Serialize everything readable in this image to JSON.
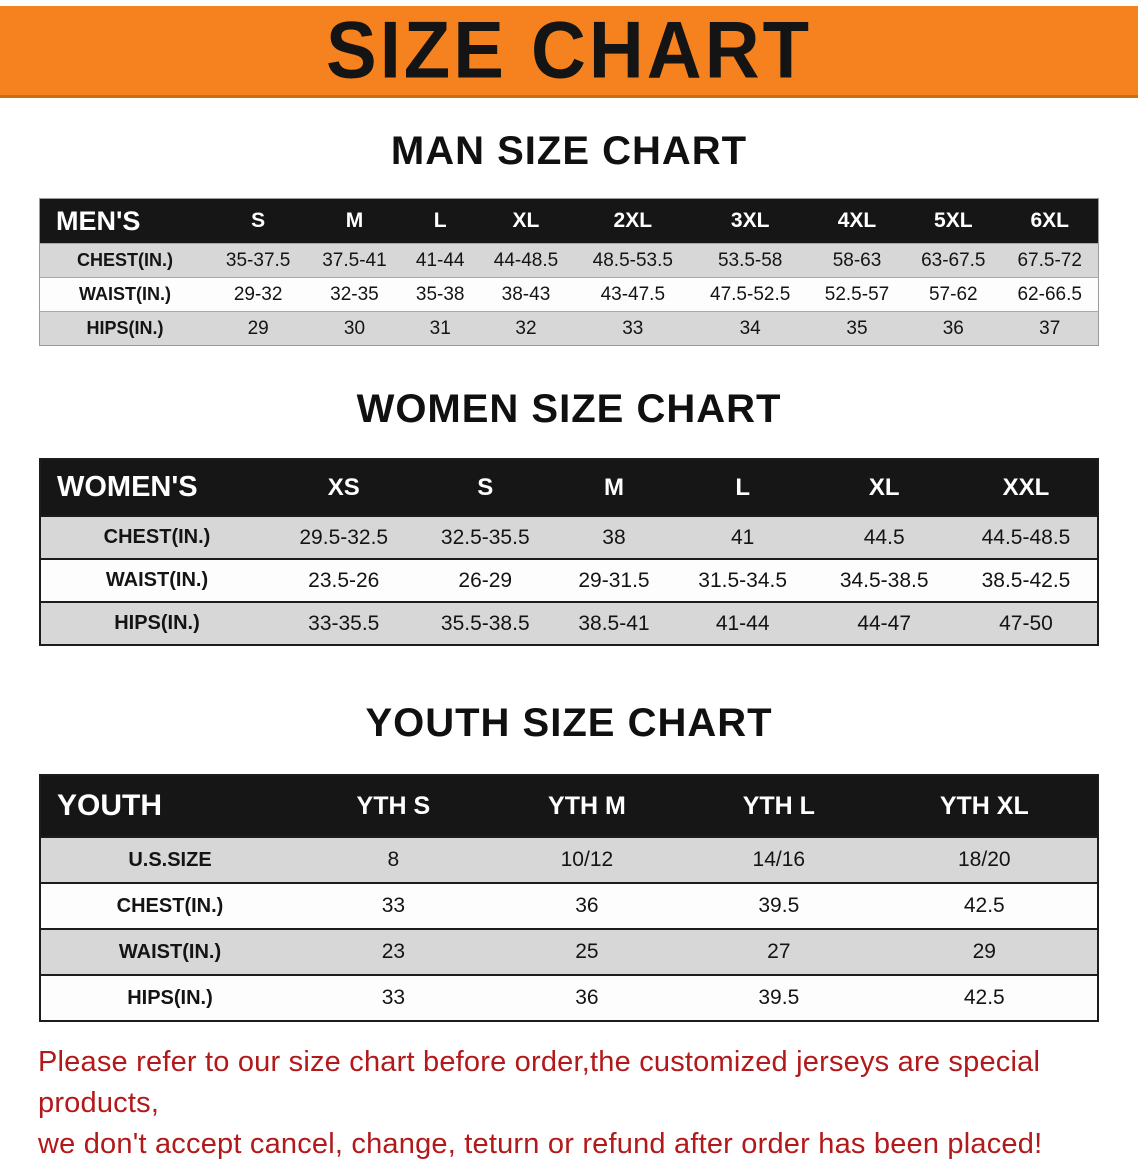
{
  "banner": {
    "title": "SIZE CHART",
    "bg_color": "#f6821f",
    "text_color": "#141414"
  },
  "colors": {
    "table_header_bg": "#161616",
    "table_header_text": "#ffffff",
    "stripe_gray": "#d7d7d7",
    "disclaimer_red": "#b2191b"
  },
  "sections": [
    {
      "heading": "MAN SIZE CHART",
      "table": {
        "corner_label": "MEN'S",
        "columns": [
          "S",
          "M",
          "L",
          "XL",
          "2XL",
          "3XL",
          "4XL",
          "5XL",
          "6XL"
        ],
        "rows": [
          {
            "label": "CHEST(IN.)",
            "values": [
              "35-37.5",
              "37.5-41",
              "41-44",
              "44-48.5",
              "48.5-53.5",
              "53.5-58",
              "58-63",
              "63-67.5",
              "67.5-72"
            ]
          },
          {
            "label": "WAIST(IN.)",
            "values": [
              "29-32",
              "32-35",
              "35-38",
              "38-43",
              "43-47.5",
              "47.5-52.5",
              "52.5-57",
              "57-62",
              "62-66.5"
            ]
          },
          {
            "label": "HIPS(IN.)",
            "values": [
              "29",
              "30",
              "31",
              "32",
              "33",
              "34",
              "35",
              "36",
              "37"
            ]
          }
        ]
      }
    },
    {
      "heading": "WOMEN SIZE CHART",
      "table": {
        "corner_label": "WOMEN'S",
        "columns": [
          "XS",
          "S",
          "M",
          "L",
          "XL",
          "XXL"
        ],
        "rows": [
          {
            "label": "CHEST(IN.)",
            "values": [
              "29.5-32.5",
              "32.5-35.5",
              "38",
              "41",
              "44.5",
              "44.5-48.5"
            ]
          },
          {
            "label": "WAIST(IN.)",
            "values": [
              "23.5-26",
              "26-29",
              "29-31.5",
              "31.5-34.5",
              "34.5-38.5",
              "38.5-42.5"
            ]
          },
          {
            "label": "HIPS(IN.)",
            "values": [
              "33-35.5",
              "35.5-38.5",
              "38.5-41",
              "41-44",
              "44-47",
              "47-50"
            ]
          }
        ]
      }
    },
    {
      "heading": "YOUTH SIZE CHART",
      "table": {
        "corner_label": "YOUTH",
        "columns": [
          "YTH S",
          "YTH M",
          "YTH L",
          "YTH XL"
        ],
        "rows": [
          {
            "label": "U.S.SIZE",
            "values": [
              "8",
              "10/12",
              "14/16",
              "18/20"
            ]
          },
          {
            "label": "CHEST(IN.)",
            "values": [
              "33",
              "36",
              "39.5",
              "42.5"
            ]
          },
          {
            "label": "WAIST(IN.)",
            "values": [
              "23",
              "25",
              "27",
              "29"
            ]
          },
          {
            "label": "HIPS(IN.)",
            "values": [
              "33",
              "36",
              "39.5",
              "42.5"
            ]
          }
        ]
      }
    }
  ],
  "disclaimer": {
    "line1": "Please refer to our size chart before order,the customized jerseys are special products,",
    "line2": "we don't accept cancel, change, teturn or refund after order has been placed!"
  }
}
